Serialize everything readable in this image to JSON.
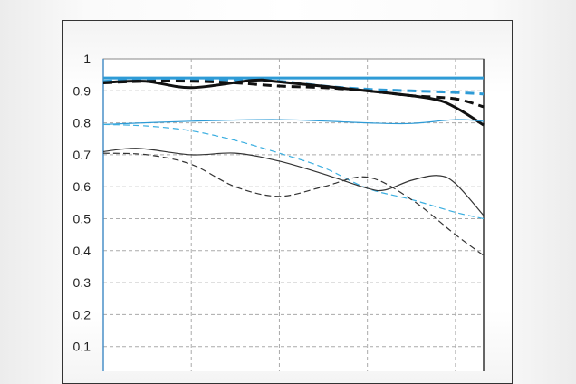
{
  "chart_data": {
    "type": "line",
    "title": "",
    "xlabel": "",
    "ylabel": "",
    "xlim": [
      0,
      21.6
    ],
    "ylim": [
      0,
      1
    ],
    "yticks": [
      "0.1",
      "0.2",
      "0.3",
      "0.4",
      "0.5",
      "0.6",
      "0.7",
      "0.8",
      "0.9",
      "1"
    ],
    "xgrid": [
      5,
      10,
      15,
      20
    ],
    "grid": true,
    "series": [
      {
        "color": "#2e9bd6",
        "style": "solid",
        "weight": "thick",
        "x": [
          0,
          5,
          10,
          15,
          20,
          21.6
        ],
        "y": [
          0.94,
          0.94,
          0.94,
          0.94,
          0.94,
          0.94
        ]
      },
      {
        "color": "#2e9bd6",
        "style": "dashed",
        "weight": "thick",
        "x": [
          0,
          2.5,
          5,
          7.5,
          10,
          12.5,
          15,
          17.5,
          20,
          21.6
        ],
        "y": [
          0.93,
          0.935,
          0.935,
          0.935,
          0.93,
          0.915,
          0.905,
          0.9,
          0.895,
          0.89
        ]
      },
      {
        "color": "#111111",
        "style": "dashed",
        "weight": "thick",
        "x": [
          0,
          2.5,
          5,
          7.5,
          10,
          12.5,
          15,
          17.5,
          20,
          21.6
        ],
        "y": [
          0.925,
          0.93,
          0.93,
          0.925,
          0.915,
          0.91,
          0.9,
          0.885,
          0.875,
          0.85
        ]
      },
      {
        "color": "#111111",
        "style": "solid",
        "weight": "thick",
        "x": [
          0,
          2.4,
          5,
          8.5,
          10,
          15,
          18.6,
          20,
          21.6
        ],
        "y": [
          0.926,
          0.93,
          0.91,
          0.933,
          0.928,
          0.9,
          0.876,
          0.848,
          0.793
        ]
      },
      {
        "color": "#2e9bd6",
        "style": "solid",
        "weight": "thin",
        "x": [
          0,
          5,
          10,
          15,
          17.5,
          20,
          21.6
        ],
        "y": [
          0.795,
          0.805,
          0.81,
          0.8,
          0.798,
          0.81,
          0.805
        ]
      },
      {
        "color": "#3aaee0",
        "style": "dashed",
        "weight": "thin",
        "x": [
          0,
          2.5,
          5,
          7.5,
          10,
          12.5,
          15,
          17.5,
          20,
          21.6
        ],
        "y": [
          0.795,
          0.79,
          0.775,
          0.745,
          0.705,
          0.66,
          0.595,
          0.56,
          0.52,
          0.5
        ]
      },
      {
        "color": "#333333",
        "style": "solid",
        "weight": "thin",
        "x": [
          0,
          2,
          5,
          7.5,
          10,
          12.5,
          15,
          16,
          17.5,
          19,
          20,
          21.6
        ],
        "y": [
          0.71,
          0.72,
          0.7,
          0.705,
          0.68,
          0.64,
          0.595,
          0.59,
          0.62,
          0.635,
          0.61,
          0.51
        ]
      },
      {
        "color": "#333333",
        "style": "dashed",
        "weight": "thin",
        "x": [
          0,
          2.5,
          5,
          7.5,
          10,
          12.5,
          15,
          17.5,
          20,
          21.6
        ],
        "y": [
          0.705,
          0.7,
          0.67,
          0.6,
          0.57,
          0.6,
          0.63,
          0.56,
          0.45,
          0.385
        ]
      }
    ]
  }
}
